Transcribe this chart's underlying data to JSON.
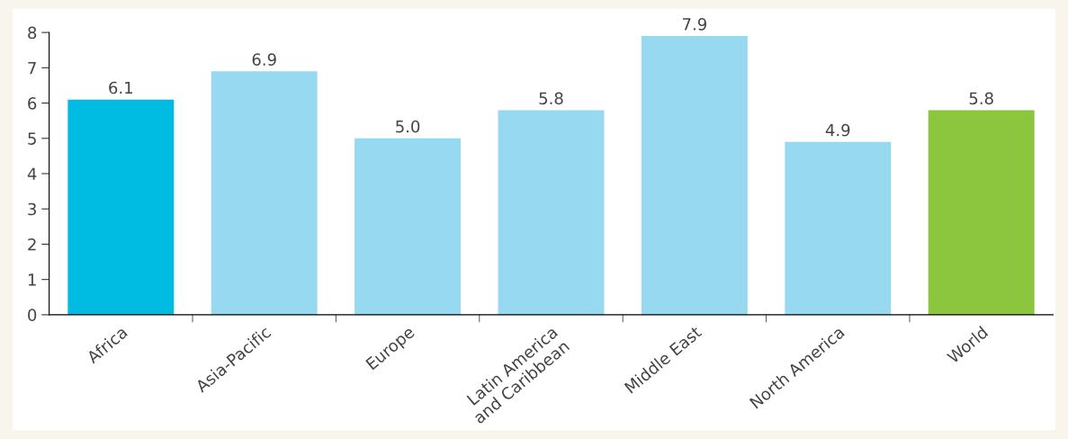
{
  "chart_data": {
    "type": "bar",
    "categories": [
      "Africa",
      "Asia-Pacific",
      "Europe",
      "Latin America\nand Caribbean",
      "Middle East",
      "North America",
      "World"
    ],
    "values": [
      6.1,
      6.9,
      5.0,
      5.8,
      7.9,
      4.9,
      5.8
    ],
    "value_labels": [
      "6.1",
      "6.9",
      "5.0",
      "5.8",
      "7.9",
      "4.9",
      "5.8"
    ],
    "colors": [
      "#00bce3",
      "#97d9f0",
      "#97d9f0",
      "#97d9f0",
      "#97d9f0",
      "#97d9f0",
      "#8cc63f"
    ],
    "ylim": [
      0,
      8
    ],
    "yticks": [
      0,
      1,
      2,
      3,
      4,
      5,
      6,
      7,
      8
    ],
    "grid": false
  }
}
